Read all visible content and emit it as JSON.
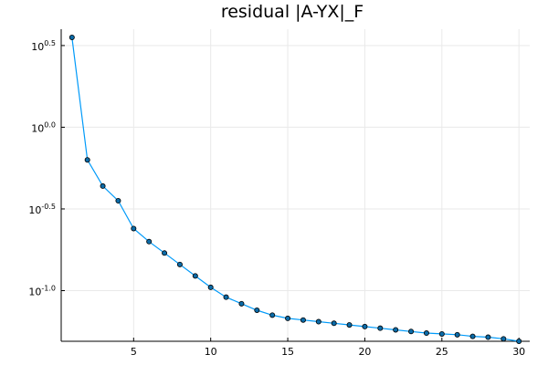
{
  "chart_data": {
    "type": "line",
    "title": "residual |A-YX|_F",
    "xlabel": "",
    "ylabel": "",
    "y_scale": "log10",
    "grid": true,
    "legend": "none",
    "xlim": [
      0.3,
      30.7
    ],
    "ylim": [
      -1.31,
      0.6
    ],
    "x_ticks": [
      5,
      10,
      15,
      20,
      25,
      30
    ],
    "y_ticks": [
      {
        "value": 0.5,
        "base": "10",
        "exp": "0.5"
      },
      {
        "value": 0.0,
        "base": "10",
        "exp": "0.0"
      },
      {
        "value": -0.5,
        "base": "10",
        "exp": "-0.5"
      },
      {
        "value": -1.0,
        "base": "10",
        "exp": "-1.0"
      }
    ],
    "series": [
      {
        "color": "#009af9",
        "marker_color": "#0b6ba8",
        "x": [
          1,
          2,
          3,
          4,
          5,
          6,
          7,
          8,
          9,
          10,
          11,
          12,
          13,
          14,
          15,
          16,
          17,
          18,
          19,
          20,
          21,
          22,
          23,
          24,
          25,
          26,
          27,
          28,
          29,
          30
        ],
        "log10_y": [
          0.55,
          -0.2,
          -0.36,
          -0.45,
          -0.62,
          -0.7,
          -0.77,
          -0.84,
          -0.91,
          -0.98,
          -1.04,
          -1.08,
          -1.12,
          -1.15,
          -1.17,
          -1.18,
          -1.19,
          -1.2,
          -1.21,
          -1.22,
          -1.23,
          -1.24,
          -1.25,
          -1.26,
          -1.265,
          -1.27,
          -1.28,
          -1.285,
          -1.295,
          -1.31
        ]
      }
    ]
  }
}
